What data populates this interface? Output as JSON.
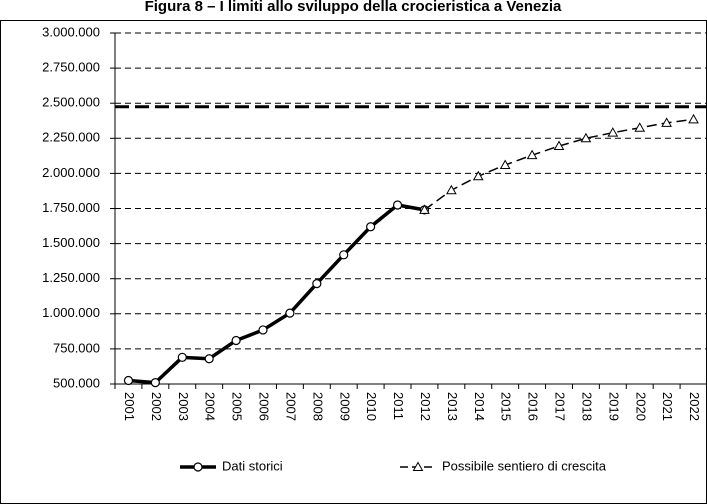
{
  "chart_data": {
    "type": "line",
    "title": "Figura 8 – I limiti allo sviluppo della crocieristica a Venezia",
    "categories": [
      "2001",
      "2002",
      "2003",
      "2004",
      "2005",
      "2006",
      "2007",
      "2008",
      "2009",
      "2010",
      "2011",
      "2012",
      "2013",
      "2014",
      "2015",
      "2016",
      "2017",
      "2018",
      "2019",
      "2020",
      "2021",
      "2022"
    ],
    "series": [
      {
        "name": "Dati storici",
        "color": "#000000",
        "marker": "circle",
        "dashed": false,
        "values": [
          525000,
          510000,
          690000,
          680000,
          810000,
          885000,
          1005000,
          1215000,
          1420000,
          1620000,
          1775000,
          1740000,
          null,
          null,
          null,
          null,
          null,
          null,
          null,
          null,
          null,
          null
        ]
      },
      {
        "name": "Possibile sentiero di crescita",
        "color": "#000000",
        "marker": "triangle",
        "dashed": true,
        "values": [
          null,
          null,
          null,
          null,
          null,
          null,
          null,
          null,
          null,
          null,
          null,
          1740000,
          1880000,
          1980000,
          2060000,
          2130000,
          2195000,
          2250000,
          2290000,
          2325000,
          2360000,
          2385000
        ]
      }
    ],
    "reference_line": 2475000,
    "ylim": [
      500000,
      3000000
    ],
    "yticks": [
      {
        "value": 500000,
        "label": "500.000"
      },
      {
        "value": 750000,
        "label": "750.000"
      },
      {
        "value": 1000000,
        "label": "1.000.000"
      },
      {
        "value": 1250000,
        "label": "1.250.000"
      },
      {
        "value": 1500000,
        "label": "1.500.000"
      },
      {
        "value": 1750000,
        "label": "1.750.000"
      },
      {
        "value": 2000000,
        "label": "2.000.000"
      },
      {
        "value": 2250000,
        "label": "2.250.000"
      },
      {
        "value": 2500000,
        "label": "2.500.000"
      },
      {
        "value": 2750000,
        "label": "2.750.000"
      },
      {
        "value": 3000000,
        "label": "3.000.000"
      }
    ],
    "grid": true
  }
}
